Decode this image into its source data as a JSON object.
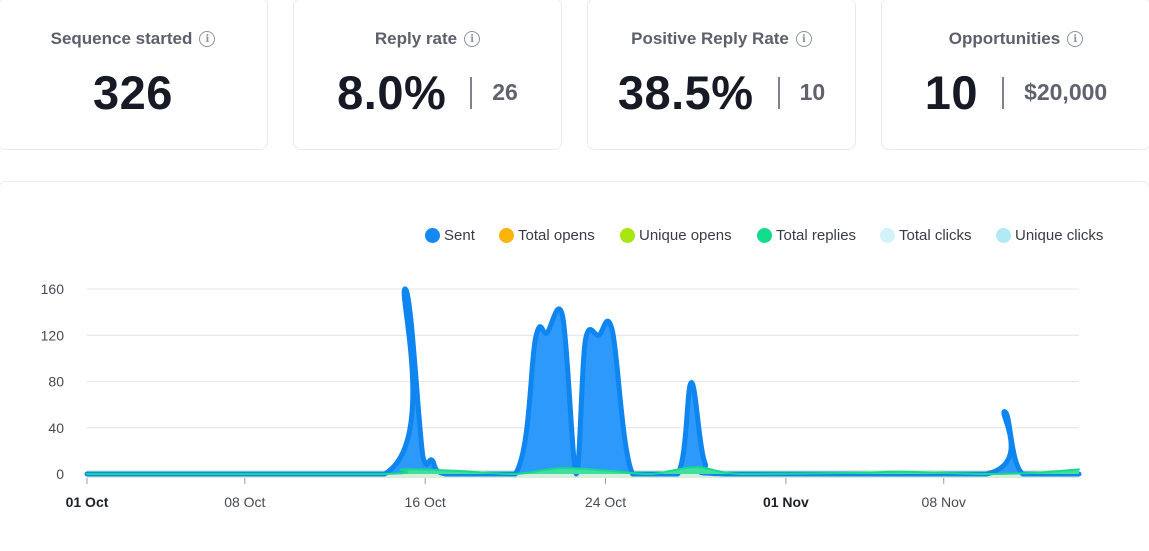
{
  "metrics": [
    {
      "title": "Sequence started",
      "value": "326",
      "secondary": null
    },
    {
      "title": "Reply rate",
      "value": "8.0%",
      "secondary": "26"
    },
    {
      "title": "Positive Reply Rate",
      "value": "38.5%",
      "secondary": "10"
    },
    {
      "title": "Opportunities",
      "value": "10",
      "secondary": "$20,000"
    }
  ],
  "info_icon_glyph": "i",
  "legend": [
    {
      "label": "Sent",
      "color": "#1589f0"
    },
    {
      "label": "Total opens",
      "color": "#fbb40a"
    },
    {
      "label": "Unique opens",
      "color": "#a8e610"
    },
    {
      "label": "Total replies",
      "color": "#13db8c"
    },
    {
      "label": "Total clicks",
      "color": "#d3f2f9"
    },
    {
      "label": "Unique clicks",
      "color": "#b1e9f4"
    }
  ],
  "chart_data": {
    "type": "area",
    "ylim": [
      0,
      160
    ],
    "yticks": [
      0,
      40,
      80,
      120,
      160
    ],
    "xlim": [
      0,
      44
    ],
    "xticks": [
      {
        "label": "01 Oct",
        "day": 0,
        "bold": true
      },
      {
        "label": "08 Oct",
        "day": 7,
        "bold": false
      },
      {
        "label": "16 Oct",
        "day": 15,
        "bold": false
      },
      {
        "label": "24 Oct",
        "day": 23,
        "bold": false
      },
      {
        "label": "01 Nov",
        "day": 31,
        "bold": true
      },
      {
        "label": "08 Nov",
        "day": 38,
        "bold": false
      }
    ],
    "series": [
      {
        "name": "Sent",
        "points": [
          [
            0,
            0
          ],
          [
            13.2,
            0
          ],
          [
            14.1,
            160
          ],
          [
            14.9,
            15
          ],
          [
            15.3,
            12
          ],
          [
            15.9,
            0
          ],
          [
            19,
            0
          ],
          [
            19.9,
            118
          ],
          [
            20.4,
            122
          ],
          [
            21.1,
            136
          ],
          [
            21.7,
            0
          ],
          [
            22.1,
            115
          ],
          [
            22.7,
            120
          ],
          [
            23.3,
            124
          ],
          [
            24.2,
            0
          ],
          [
            26.2,
            0
          ],
          [
            26.8,
            79
          ],
          [
            27.4,
            10
          ],
          [
            28.4,
            0
          ],
          [
            39.9,
            0
          ],
          [
            40.7,
            54
          ],
          [
            41.5,
            0
          ],
          [
            44,
            0
          ]
        ]
      },
      {
        "name": "Total replies",
        "points": [
          [
            0,
            0
          ],
          [
            13,
            0
          ],
          [
            14,
            4
          ],
          [
            16,
            3
          ],
          [
            17,
            2
          ],
          [
            19,
            0
          ],
          [
            21,
            5
          ],
          [
            23,
            3
          ],
          [
            25,
            0
          ],
          [
            27,
            6
          ],
          [
            29,
            0
          ],
          [
            34,
            1
          ],
          [
            36,
            2
          ],
          [
            38,
            1
          ],
          [
            40,
            0
          ],
          [
            42,
            1
          ],
          [
            44,
            4
          ]
        ]
      }
    ]
  }
}
